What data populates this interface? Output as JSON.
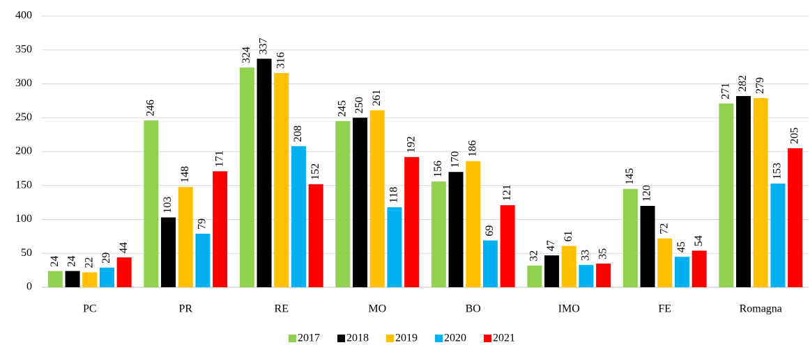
{
  "chart_data": {
    "type": "bar",
    "categories": [
      "PC",
      "PR",
      "RE",
      "MO",
      "BO",
      "IMO",
      "FE",
      "Romagna"
    ],
    "series": [
      {
        "name": "2017",
        "color": "#92d050",
        "values": [
          24,
          246,
          324,
          245,
          156,
          32,
          145,
          271
        ]
      },
      {
        "name": "2018",
        "color": "#000000",
        "values": [
          24,
          103,
          337,
          250,
          170,
          47,
          120,
          282
        ]
      },
      {
        "name": "2019",
        "color": "#ffc000",
        "values": [
          22,
          148,
          316,
          261,
          186,
          61,
          72,
          279
        ]
      },
      {
        "name": "2020",
        "color": "#00b0f0",
        "values": [
          29,
          79,
          208,
          118,
          69,
          33,
          45,
          153
        ]
      },
      {
        "name": "2021",
        "color": "#ff0000",
        "values": [
          44,
          171,
          152,
          192,
          121,
          35,
          54,
          205
        ]
      }
    ],
    "ylim": [
      0,
      400
    ],
    "yticks": [
      0,
      50,
      100,
      150,
      200,
      250,
      300,
      350,
      400
    ],
    "grid": true,
    "legend": "bottom"
  }
}
